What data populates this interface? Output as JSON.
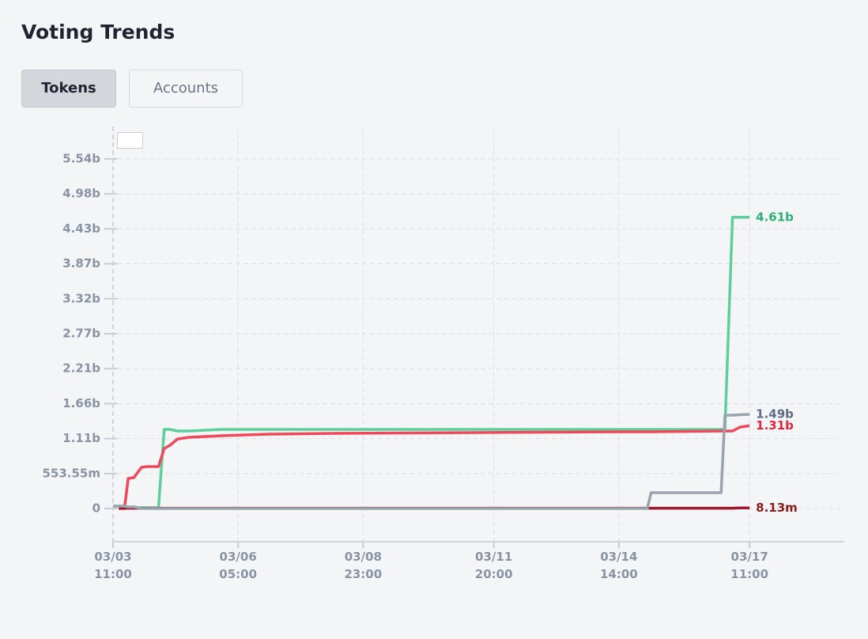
{
  "title": "Voting Trends",
  "tabs": [
    "Tokens",
    "Accounts"
  ],
  "chart_data": {
    "type": "line",
    "x": [
      "03/03 11:00",
      "03/03 14:00",
      "03/03 17:00",
      "03/03 19:00",
      "03/03 22:00",
      "03/04 02:00",
      "03/04 05:00",
      "03/04 11:00",
      "03/04 14:00",
      "03/04 17:00",
      "03/04 21:00",
      "03/05 03:00",
      "03/05 20:00",
      "03/06 21:00",
      "03/08 07:00",
      "03/11 10:00",
      "03/14 13:00",
      "03/15 05:00",
      "03/15 07:00",
      "03/16 20:00",
      "03/16 22:00",
      "03/17 02:00",
      "03/17 06:00",
      "03/17 11:00"
    ],
    "series": [
      {
        "name": "green",
        "color": "#5ccf9a",
        "label_color": "#2fae76",
        "values": [
          38000000,
          38000000,
          38000000,
          13000000,
          13000000,
          13000000,
          13000000,
          13000000,
          1252000000,
          1252000000,
          1227000000,
          1227000000,
          1252000000,
          1252000000,
          1252000000,
          1252000000,
          1252000000,
          1252000000,
          1252000000,
          1252000000,
          1252000000,
          4610000000,
          4610000000,
          4610000000
        ],
        "value_labels": [
          null,
          null,
          null,
          null,
          null,
          null,
          null,
          null,
          null,
          null,
          null,
          null,
          null,
          null,
          null,
          null,
          null,
          null,
          null,
          null,
          null,
          null,
          null,
          "4.61b"
        ]
      },
      {
        "name": "red",
        "color": "#f0485a",
        "label_color": "#e8243c",
        "values": [
          null,
          0,
          0,
          476000000,
          490000000,
          651000000,
          664000000,
          664000000,
          950000000,
          1000000000,
          1100000000,
          1127000000,
          1152000000,
          1177000000,
          1190000000,
          1202000000,
          1215000000,
          1215000000,
          1215000000,
          1227000000,
          1227000000,
          1227000000,
          1290000000,
          1310000000
        ],
        "value_labels": [
          null,
          null,
          null,
          null,
          null,
          null,
          null,
          null,
          null,
          null,
          null,
          null,
          null,
          null,
          null,
          null,
          null,
          null,
          null,
          null,
          null,
          null,
          null,
          "1.31b"
        ]
      },
      {
        "name": "dark red",
        "color": "#a0162a",
        "label_color": "#8b1a1a",
        "values": [
          null,
          5000000,
          5000000,
          5000000,
          5000000,
          5000000,
          5000000,
          5000000,
          5000000,
          5000000,
          5000000,
          5000000,
          5000000,
          5000000,
          5000000,
          5000000,
          5000000,
          5000000,
          5000000,
          5000000,
          5000000,
          5000000,
          8130000,
          8130000
        ],
        "value_labels": [
          null,
          null,
          null,
          null,
          null,
          null,
          null,
          null,
          null,
          null,
          null,
          null,
          null,
          null,
          null,
          null,
          null,
          null,
          null,
          null,
          null,
          null,
          null,
          "8.13m"
        ]
      },
      {
        "name": "gray",
        "color": "#9aa3ae",
        "label_color": "#5f6b82",
        "values": [
          38000000,
          38000000,
          38000000,
          25000000,
          25000000,
          0,
          0,
          0,
          0,
          0,
          0,
          0,
          0,
          0,
          0,
          0,
          0,
          0,
          250000000,
          250000000,
          1478000000,
          1478000000,
          1485000000,
          1490000000
        ],
        "value_labels": [
          null,
          null,
          null,
          null,
          null,
          null,
          null,
          null,
          null,
          null,
          null,
          null,
          null,
          null,
          null,
          null,
          null,
          null,
          null,
          null,
          null,
          null,
          null,
          "1.49b"
        ]
      }
    ],
    "xlim": [
      "03/03 11:00",
      "03/19 13:00"
    ],
    "xticks": [
      "03/03 11:00",
      "03/06 05:00",
      "03/08 23:00",
      "03/11 20:00",
      "03/14 14:00",
      "03/17 11:00"
    ],
    "ylim": [
      -526000000,
      6048000000
    ],
    "yticks": [
      0,
      {
        "value": 553550000,
        "label": "553.55m"
      },
      {
        "value": 1107100000,
        "label": "1.11b"
      },
      {
        "value": 1660650000,
        "label": "1.66b"
      },
      {
        "value": 2214200000,
        "label": "2.21b"
      },
      {
        "value": 2767750000,
        "label": "2.77b"
      },
      {
        "value": 3321300000,
        "label": "3.32b"
      },
      {
        "value": 3874850000,
        "label": "3.87b"
      },
      {
        "value": 4428400000,
        "label": "4.43b"
      },
      {
        "value": 4981950000,
        "label": "4.98b"
      },
      {
        "value": 5535500000,
        "label": "5.54b"
      }
    ],
    "grid": true
  }
}
